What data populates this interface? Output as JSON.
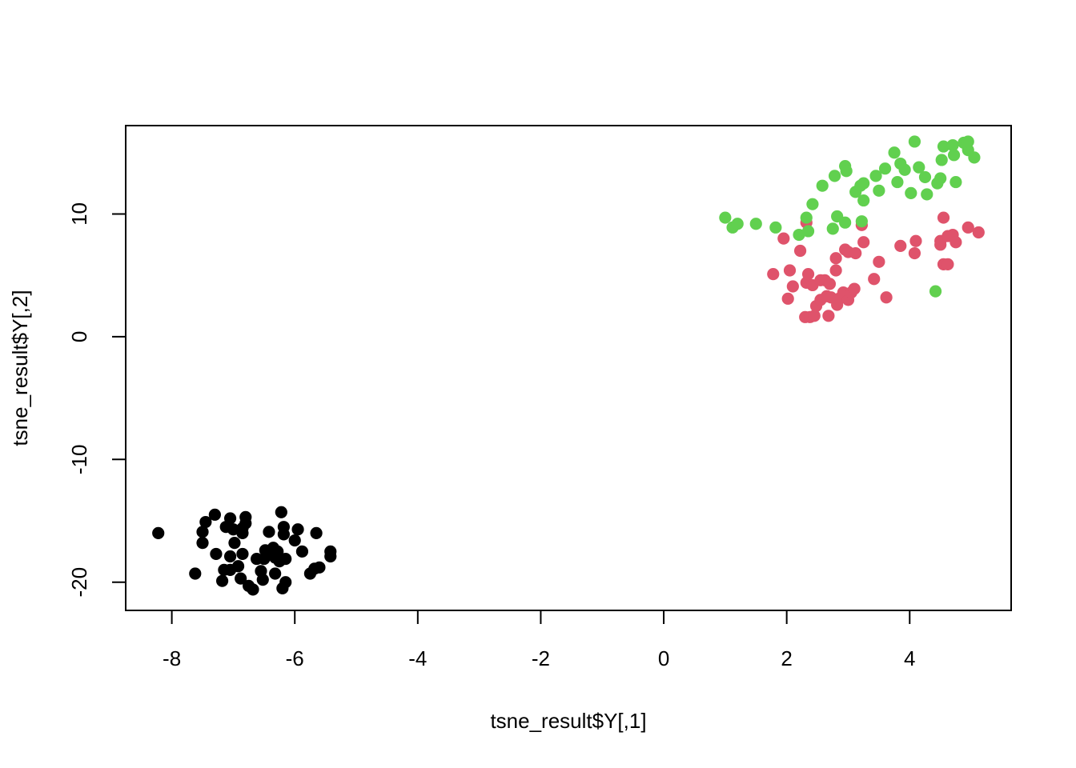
{
  "chart_data": {
    "type": "scatter",
    "title": "",
    "xlabel": "tsne_result$Y[,1]",
    "ylabel": "tsne_result$Y[,2]",
    "xlim": [
      -8.75,
      5.65
    ],
    "ylim": [
      -22.3,
      17.2
    ],
    "x_ticks": [
      -8,
      -6,
      -4,
      -2,
      0,
      2,
      4
    ],
    "y_ticks": [
      -20,
      -10,
      0,
      10
    ],
    "x_tick_labels": [
      "-8",
      "-6",
      "-4",
      "-2",
      "0",
      "2",
      "4"
    ],
    "y_tick_labels": [
      "-20",
      "-10",
      "0",
      "10"
    ],
    "grid": false,
    "legend": "none",
    "series": [
      {
        "color": "#000000",
        "points": [
          [
            -8.22,
            -16.0
          ],
          [
            -7.62,
            -19.3
          ],
          [
            -7.5,
            -15.9
          ],
          [
            -7.5,
            -16.8
          ],
          [
            -7.45,
            -15.1
          ],
          [
            -7.3,
            -14.5
          ],
          [
            -7.28,
            -17.7
          ],
          [
            -7.15,
            -19.0
          ],
          [
            -7.18,
            -19.9
          ],
          [
            -7.12,
            -15.5
          ],
          [
            -7.05,
            -14.8
          ],
          [
            -7.05,
            -17.9
          ],
          [
            -7.05,
            -19.0
          ],
          [
            -7.0,
            -15.7
          ],
          [
            -6.98,
            -16.8
          ],
          [
            -6.92,
            -18.7
          ],
          [
            -6.88,
            -19.7
          ],
          [
            -6.85,
            -15.6
          ],
          [
            -6.85,
            -16.0
          ],
          [
            -6.85,
            -17.7
          ],
          [
            -6.8,
            -14.7
          ],
          [
            -6.8,
            -15.2
          ],
          [
            -6.75,
            -20.3
          ],
          [
            -6.68,
            -20.6
          ],
          [
            -6.62,
            -18.1
          ],
          [
            -6.55,
            -19.1
          ],
          [
            -6.52,
            -19.8
          ],
          [
            -6.5,
            -18.1
          ],
          [
            -6.48,
            -17.4
          ],
          [
            -6.42,
            -15.9
          ],
          [
            -6.38,
            -17.6
          ],
          [
            -6.35,
            -17.2
          ],
          [
            -6.32,
            -18.0
          ],
          [
            -6.32,
            -19.3
          ],
          [
            -6.28,
            -17.5
          ],
          [
            -6.25,
            -18.3
          ],
          [
            -6.22,
            -14.3
          ],
          [
            -6.2,
            -20.5
          ],
          [
            -6.18,
            -15.5
          ],
          [
            -6.18,
            -16.1
          ],
          [
            -6.15,
            -18.1
          ],
          [
            -6.15,
            -20.0
          ],
          [
            -6.0,
            -16.6
          ],
          [
            -5.95,
            -15.7
          ],
          [
            -5.88,
            -17.5
          ],
          [
            -5.75,
            -19.3
          ],
          [
            -5.68,
            -18.9
          ],
          [
            -5.65,
            -16.0
          ],
          [
            -5.6,
            -18.8
          ],
          [
            -5.42,
            -17.5
          ],
          [
            -5.42,
            -17.9
          ]
        ]
      },
      {
        "color": "#DF536B",
        "points": [
          [
            1.78,
            5.1
          ],
          [
            1.95,
            8.0
          ],
          [
            2.02,
            3.1
          ],
          [
            2.05,
            5.4
          ],
          [
            2.1,
            4.1
          ],
          [
            2.22,
            7.0
          ],
          [
            2.3,
            1.6
          ],
          [
            2.32,
            9.3
          ],
          [
            2.32,
            4.4
          ],
          [
            2.35,
            5.1
          ],
          [
            2.38,
            1.6
          ],
          [
            2.42,
            4.2
          ],
          [
            2.45,
            1.7
          ],
          [
            2.48,
            2.5
          ],
          [
            2.55,
            4.6
          ],
          [
            2.55,
            3.0
          ],
          [
            2.62,
            4.6
          ],
          [
            2.65,
            3.3
          ],
          [
            2.68,
            1.7
          ],
          [
            2.7,
            4.3
          ],
          [
            2.72,
            3.2
          ],
          [
            2.8,
            6.4
          ],
          [
            2.8,
            5.4
          ],
          [
            2.82,
            2.6
          ],
          [
            2.85,
            3.1
          ],
          [
            2.92,
            3.6
          ],
          [
            2.95,
            7.1
          ],
          [
            3.0,
            3.0
          ],
          [
            3.0,
            6.9
          ],
          [
            3.05,
            3.6
          ],
          [
            3.1,
            3.9
          ],
          [
            3.12,
            6.8
          ],
          [
            3.22,
            9.1
          ],
          [
            3.25,
            7.7
          ],
          [
            3.42,
            4.7
          ],
          [
            3.5,
            6.1
          ],
          [
            3.62,
            3.2
          ],
          [
            3.85,
            7.4
          ],
          [
            4.08,
            6.8
          ],
          [
            4.1,
            7.8
          ],
          [
            4.5,
            7.8
          ],
          [
            4.5,
            7.5
          ],
          [
            4.55,
            9.7
          ],
          [
            4.55,
            5.9
          ],
          [
            4.62,
            5.9
          ],
          [
            4.62,
            8.2
          ],
          [
            4.7,
            8.3
          ],
          [
            4.75,
            7.7
          ],
          [
            4.95,
            8.9
          ],
          [
            5.12,
            8.5
          ]
        ]
      },
      {
        "color": "#61D04F",
        "points": [
          [
            1.0,
            9.7
          ],
          [
            1.12,
            8.9
          ],
          [
            1.2,
            9.2
          ],
          [
            1.5,
            9.2
          ],
          [
            1.82,
            8.9
          ],
          [
            2.2,
            8.3
          ],
          [
            2.32,
            9.7
          ],
          [
            2.35,
            8.6
          ],
          [
            2.42,
            10.8
          ],
          [
            2.58,
            12.3
          ],
          [
            2.75,
            8.8
          ],
          [
            2.78,
            13.1
          ],
          [
            2.82,
            9.8
          ],
          [
            2.95,
            9.3
          ],
          [
            2.95,
            13.9
          ],
          [
            2.97,
            13.5
          ],
          [
            3.12,
            11.8
          ],
          [
            3.2,
            12.3
          ],
          [
            3.22,
            9.4
          ],
          [
            3.25,
            11.1
          ],
          [
            3.25,
            12.5
          ],
          [
            3.45,
            13.1
          ],
          [
            3.5,
            11.9
          ],
          [
            3.6,
            13.7
          ],
          [
            3.75,
            15.0
          ],
          [
            3.8,
            12.6
          ],
          [
            3.85,
            14.1
          ],
          [
            3.92,
            13.6
          ],
          [
            4.02,
            11.7
          ],
          [
            4.08,
            15.9
          ],
          [
            4.15,
            13.8
          ],
          [
            4.25,
            13.0
          ],
          [
            4.28,
            11.6
          ],
          [
            4.42,
            3.7
          ],
          [
            4.45,
            12.5
          ],
          [
            4.5,
            12.9
          ],
          [
            4.52,
            14.4
          ],
          [
            4.55,
            15.5
          ],
          [
            4.7,
            15.6
          ],
          [
            4.72,
            14.8
          ],
          [
            4.75,
            12.6
          ],
          [
            4.88,
            15.8
          ],
          [
            4.95,
            15.2
          ],
          [
            4.95,
            15.9
          ],
          [
            5.05,
            14.6
          ]
        ]
      }
    ]
  }
}
